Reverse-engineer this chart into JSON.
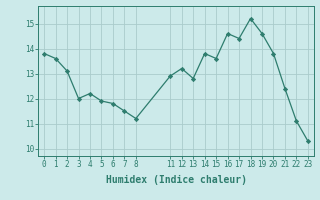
{
  "x": [
    0,
    1,
    2,
    3,
    4,
    5,
    6,
    7,
    8,
    11,
    12,
    13,
    14,
    15,
    16,
    17,
    18,
    19,
    20,
    21,
    22,
    23
  ],
  "y": [
    13.8,
    13.6,
    13.1,
    12.0,
    12.2,
    11.9,
    11.8,
    11.5,
    11.2,
    12.9,
    13.2,
    12.8,
    13.8,
    13.6,
    14.6,
    14.4,
    15.2,
    14.6,
    13.8,
    12.4,
    11.1,
    10.3
  ],
  "xticks": [
    0,
    1,
    2,
    3,
    4,
    5,
    6,
    7,
    8,
    11,
    12,
    13,
    14,
    15,
    16,
    17,
    18,
    19,
    20,
    21,
    22,
    23
  ],
  "yticks": [
    10,
    11,
    12,
    13,
    14,
    15
  ],
  "ylim": [
    9.7,
    15.7
  ],
  "xlim": [
    -0.5,
    23.5
  ],
  "xlabel": "Humidex (Indice chaleur)",
  "line_color": "#2e7d6e",
  "marker": "D",
  "marker_size": 2.2,
  "bg_color": "#cceaea",
  "grid_color": "#aacccc",
  "font_color": "#2e7d6e",
  "tick_fontsize": 5.5,
  "xlabel_fontsize": 7.0
}
